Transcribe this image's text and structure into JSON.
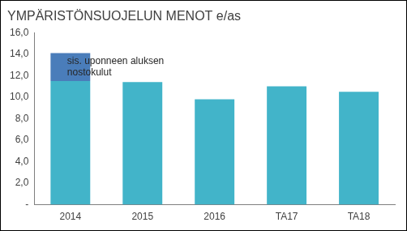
{
  "chart_data": {
    "type": "bar",
    "title": "YMPÄRISTÖNSUOJELUN MENOT e/as",
    "categories": [
      "2014",
      "2015",
      "2016",
      "TA17",
      "TA18"
    ],
    "series": [
      {
        "color": "#42B4C9",
        "values": [
          11.5,
          11.4,
          9.8,
          11.0,
          10.5
        ]
      },
      {
        "color": "#4A7DBA",
        "values": [
          2.6,
          null,
          null,
          null,
          null
        ],
        "annotation": "sis. uponneen aluksen nostokulut"
      }
    ],
    "stacked": true,
    "grid": false,
    "ylim": [
      0,
      16
    ],
    "yticks": [
      {
        "value": 0,
        "label": "-"
      },
      {
        "value": 2,
        "label": "2,0"
      },
      {
        "value": 4,
        "label": "4,0"
      },
      {
        "value": 6,
        "label": "6,0"
      },
      {
        "value": 8,
        "label": "8,0"
      },
      {
        "value": 10,
        "label": "10,0"
      },
      {
        "value": 12,
        "label": "12,0"
      },
      {
        "value": 14,
        "label": "14,0"
      },
      {
        "value": 16,
        "label": "16,0"
      }
    ]
  }
}
